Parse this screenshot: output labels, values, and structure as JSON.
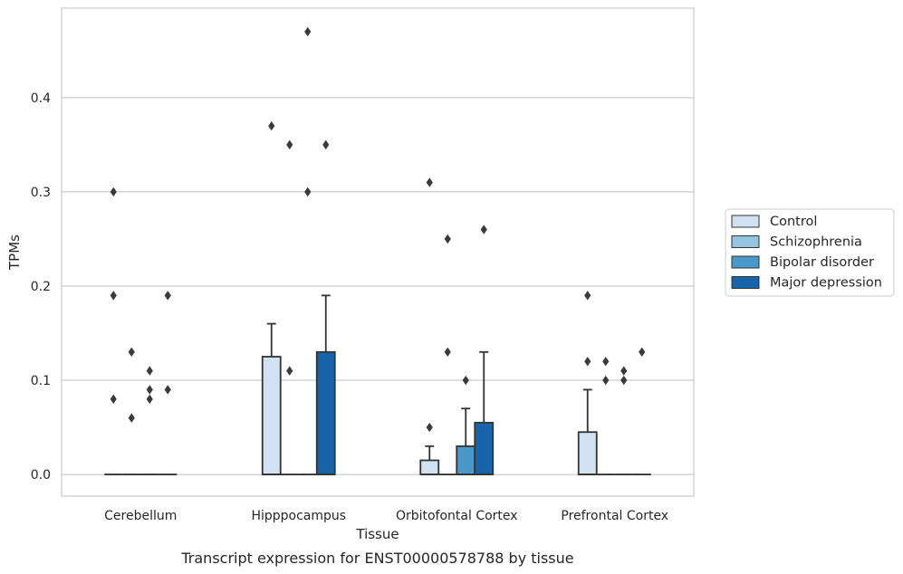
{
  "caption": "Transcript expression for ENST00000578788 by tissue",
  "chart_data": {
    "type": "boxplot",
    "title": "",
    "xlabel": "Tissue",
    "ylabel": "TPMs",
    "ylim": [
      -0.023,
      0.495
    ],
    "yticks": [
      0.0,
      0.1,
      0.2,
      0.3,
      0.4
    ],
    "ytick_labels": [
      "0.0",
      "0.1",
      "0.2",
      "0.3",
      "0.4"
    ],
    "grid": "horizontal",
    "legend_position": "right",
    "categories": [
      "Cerebellum",
      "Hipppocampus",
      "Orbitofontal Cortex",
      "Prefrontal Cortex"
    ],
    "series": [
      {
        "name": "Control",
        "color": "#d0e1f2",
        "boxes": [
          {
            "q1": 0,
            "median": 0,
            "q3": 0,
            "whisker_low": 0,
            "whisker_high": 0,
            "outliers": [
              0.3,
              0.19,
              0.08
            ]
          },
          {
            "q1": 0,
            "median": 0,
            "q3": 0.125,
            "whisker_low": 0,
            "whisker_high": 0.16,
            "outliers": [
              0.37
            ]
          },
          {
            "q1": 0,
            "median": 0,
            "q3": 0.015,
            "whisker_low": 0,
            "whisker_high": 0.03,
            "outliers": [
              0.31,
              0.05
            ]
          },
          {
            "q1": 0,
            "median": 0,
            "q3": 0.045,
            "whisker_low": 0,
            "whisker_high": 0.09,
            "outliers": [
              0.19,
              0.12
            ]
          }
        ]
      },
      {
        "name": "Schizophrenia",
        "color": "#94c4df",
        "boxes": [
          {
            "q1": 0,
            "median": 0,
            "q3": 0,
            "whisker_low": 0,
            "whisker_high": 0,
            "outliers": [
              0.13,
              0.06
            ]
          },
          {
            "q1": 0,
            "median": 0,
            "q3": 0,
            "whisker_low": 0,
            "whisker_high": 0,
            "outliers": [
              0.35,
              0.11
            ]
          },
          {
            "q1": 0,
            "median": 0,
            "q3": 0,
            "whisker_low": 0,
            "whisker_high": 0,
            "outliers": [
              0.25,
              0.13
            ]
          },
          {
            "q1": 0,
            "median": 0,
            "q3": 0,
            "whisker_low": 0,
            "whisker_high": 0,
            "outliers": [
              0.12,
              0.1
            ]
          }
        ]
      },
      {
        "name": "Bipolar disorder",
        "color": "#4a98c9",
        "boxes": [
          {
            "q1": 0,
            "median": 0,
            "q3": 0,
            "whisker_low": 0,
            "whisker_high": 0,
            "outliers": [
              0.11,
              0.09,
              0.08
            ]
          },
          {
            "q1": 0,
            "median": 0,
            "q3": 0,
            "whisker_low": 0,
            "whisker_high": 0,
            "outliers": [
              0.47,
              0.3
            ]
          },
          {
            "q1": 0,
            "median": 0,
            "q3": 0.03,
            "whisker_low": 0,
            "whisker_high": 0.07,
            "outliers": [
              0.1
            ]
          },
          {
            "q1": 0,
            "median": 0,
            "q3": 0,
            "whisker_low": 0,
            "whisker_high": 0,
            "outliers": [
              0.11,
              0.1
            ]
          }
        ]
      },
      {
        "name": "Major depression",
        "color": "#1764ab",
        "boxes": [
          {
            "q1": 0,
            "median": 0,
            "q3": 0,
            "whisker_low": 0,
            "whisker_high": 0,
            "outliers": [
              0.19,
              0.09
            ]
          },
          {
            "q1": 0,
            "median": 0,
            "q3": 0.13,
            "whisker_low": 0,
            "whisker_high": 0.19,
            "outliers": [
              0.35
            ]
          },
          {
            "q1": 0,
            "median": 0,
            "q3": 0.055,
            "whisker_low": 0,
            "whisker_high": 0.13,
            "outliers": [
              0.26
            ]
          },
          {
            "q1": 0,
            "median": 0,
            "q3": 0,
            "whisker_low": 0,
            "whisker_high": 0,
            "outliers": [
              0.13
            ]
          }
        ]
      }
    ]
  }
}
